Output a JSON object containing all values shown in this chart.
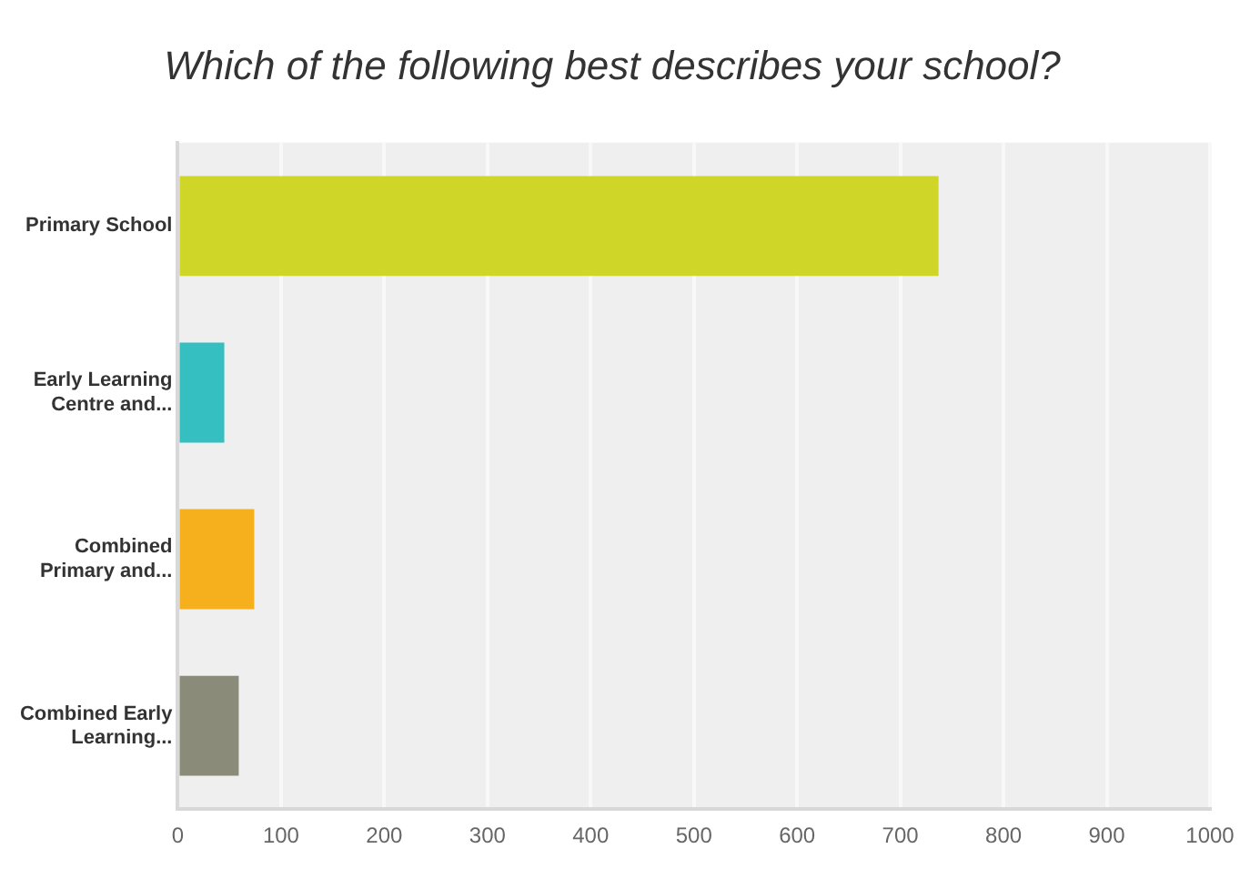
{
  "chart_data": {
    "type": "bar",
    "orientation": "horizontal",
    "title": "Which of the following best describes your school?",
    "categories": [
      "Primary School",
      "Early Learning Centre and...",
      "Combined Primary and...",
      "Combined Early Learning..."
    ],
    "values": [
      737,
      45,
      74,
      59
    ],
    "colors": [
      "#cfd628",
      "#35bfc0",
      "#f6b01e",
      "#8b8b7a"
    ],
    "xlim": [
      0,
      1000
    ],
    "xticks": [
      0,
      100,
      200,
      300,
      400,
      500,
      600,
      700,
      800,
      900,
      1000
    ],
    "grid": "x"
  }
}
